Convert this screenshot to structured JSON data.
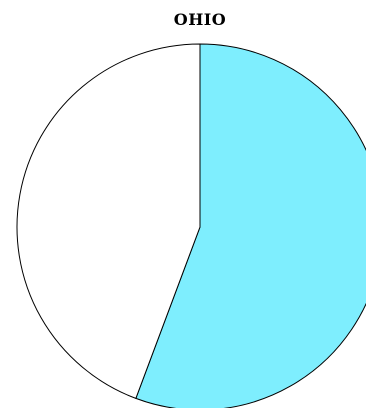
{
  "chart_data": {
    "type": "pie",
    "title": "OHIO",
    "categories": [
      "",
      ""
    ],
    "values": [
      55.7,
      44.3
    ],
    "colors": [
      "#7eeefe",
      "#ffffff"
    ],
    "outline_color": "#000000",
    "start": "12 o'clock",
    "direction": "clockwise",
    "legend": "none"
  }
}
